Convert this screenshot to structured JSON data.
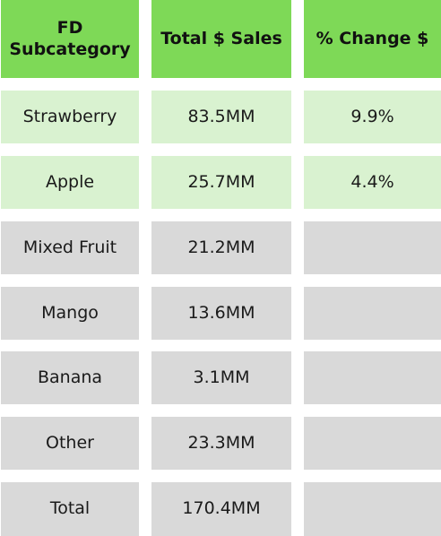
{
  "table": {
    "headers": [
      "FD Subcategory",
      "Total $ Sales",
      "% Change $"
    ],
    "rows": [
      {
        "subcategory": "Strawberry",
        "sales": "83.5MM",
        "change": "9.9%"
      },
      {
        "subcategory": "Apple",
        "sales": "25.7MM",
        "change": "4.4%"
      },
      {
        "subcategory": "Mixed Fruit",
        "sales": "21.2MM",
        "change": ""
      },
      {
        "subcategory": "Mango",
        "sales": "13.6MM",
        "change": ""
      },
      {
        "subcategory": "Banana",
        "sales": "3.1MM",
        "change": ""
      },
      {
        "subcategory": "Other",
        "sales": "23.3MM",
        "change": ""
      },
      {
        "subcategory": "Total",
        "sales": "170.4MM",
        "change": ""
      }
    ]
  },
  "colors": {
    "header_bg": "#7ed957",
    "highlight_row_bg": "#d9f2d0",
    "plain_row_bg": "#d9d9d9"
  }
}
